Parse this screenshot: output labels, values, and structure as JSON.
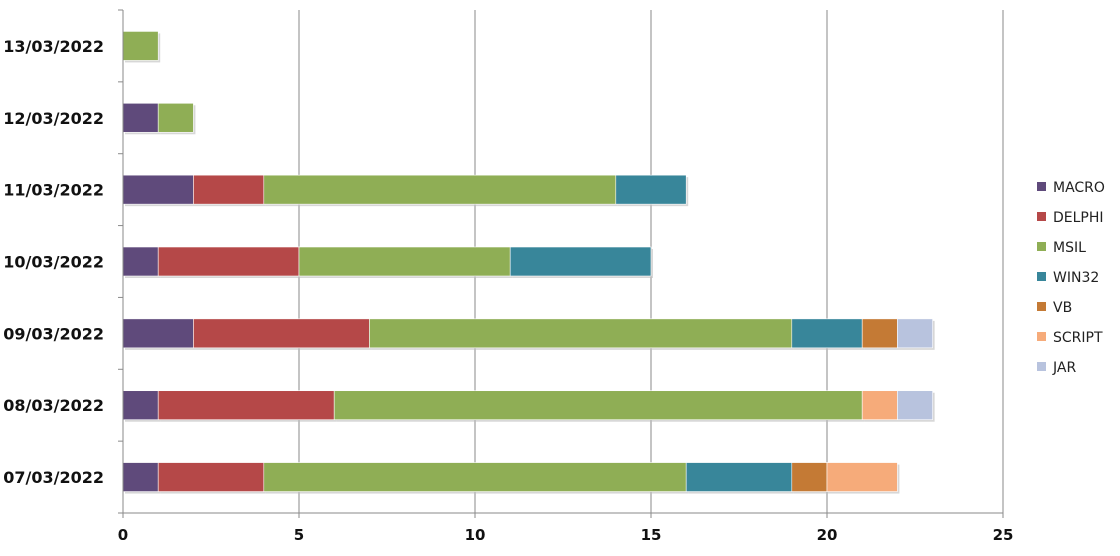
{
  "chart_data": {
    "type": "bar",
    "orientation": "horizontal",
    "stacked": true,
    "categories": [
      "07/03/2022",
      "08/03/2022",
      "09/03/2022",
      "10/03/2022",
      "11/03/2022",
      "12/03/2022",
      "13/03/2022"
    ],
    "series": [
      {
        "name": "MACRO",
        "color": "#5f4a7b",
        "values": [
          1,
          1,
          2,
          1,
          2,
          1,
          0
        ]
      },
      {
        "name": "DELPHI",
        "color": "#b54848",
        "values": [
          3,
          5,
          5,
          4,
          2,
          0,
          0
        ]
      },
      {
        "name": "MSIL",
        "color": "#8fae55",
        "values": [
          12,
          15,
          12,
          6,
          10,
          1,
          1
        ]
      },
      {
        "name": "WIN32",
        "color": "#38869a",
        "values": [
          3,
          0,
          2,
          4,
          2,
          0,
          0
        ]
      },
      {
        "name": "VB",
        "color": "#c47a35",
        "values": [
          1,
          0,
          1,
          0,
          0,
          0,
          0
        ]
      },
      {
        "name": "SCRIPT",
        "color": "#f6ab7a",
        "values": [
          2,
          1,
          0,
          0,
          0,
          0,
          0
        ]
      },
      {
        "name": "JAR",
        "color": "#b8c3de",
        "values": [
          0,
          1,
          1,
          0,
          0,
          0,
          0
        ]
      }
    ],
    "xlim": [
      0,
      25
    ],
    "xticks": [
      "0",
      "5",
      "10",
      "15",
      "20",
      "25"
    ],
    "grid": true,
    "legend_position": "right"
  }
}
